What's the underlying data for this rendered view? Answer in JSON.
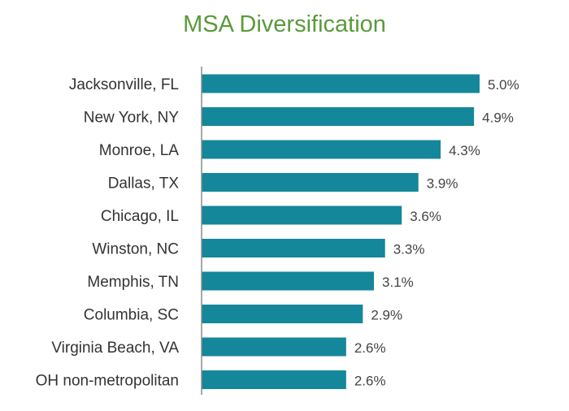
{
  "title": "MSA Diversification",
  "colors": {
    "title": "#5a9a3c",
    "bar": "#14879a",
    "axis": "#8c8c8c"
  },
  "chart_data": {
    "type": "bar",
    "orientation": "horizontal",
    "title": "MSA Diversification",
    "xlabel": "",
    "ylabel": "",
    "xlim": [
      0,
      5.0
    ],
    "grid": false,
    "legend": "none",
    "categories": [
      "Jacksonville, FL",
      "New York, NY",
      "Monroe, LA",
      "Dallas, TX",
      "Chicago, IL",
      "Winston, NC",
      "Memphis, TN",
      "Columbia, SC",
      "Virginia Beach, VA",
      "OH non-metropolitan"
    ],
    "values": [
      5.0,
      4.9,
      4.3,
      3.9,
      3.6,
      3.3,
      3.1,
      2.9,
      2.6,
      2.6
    ],
    "value_labels": [
      "5.0%",
      "4.9%",
      "4.3%",
      "3.9%",
      "3.6%",
      "3.3%",
      "3.1%",
      "2.9%",
      "2.6%",
      "2.6%"
    ]
  }
}
